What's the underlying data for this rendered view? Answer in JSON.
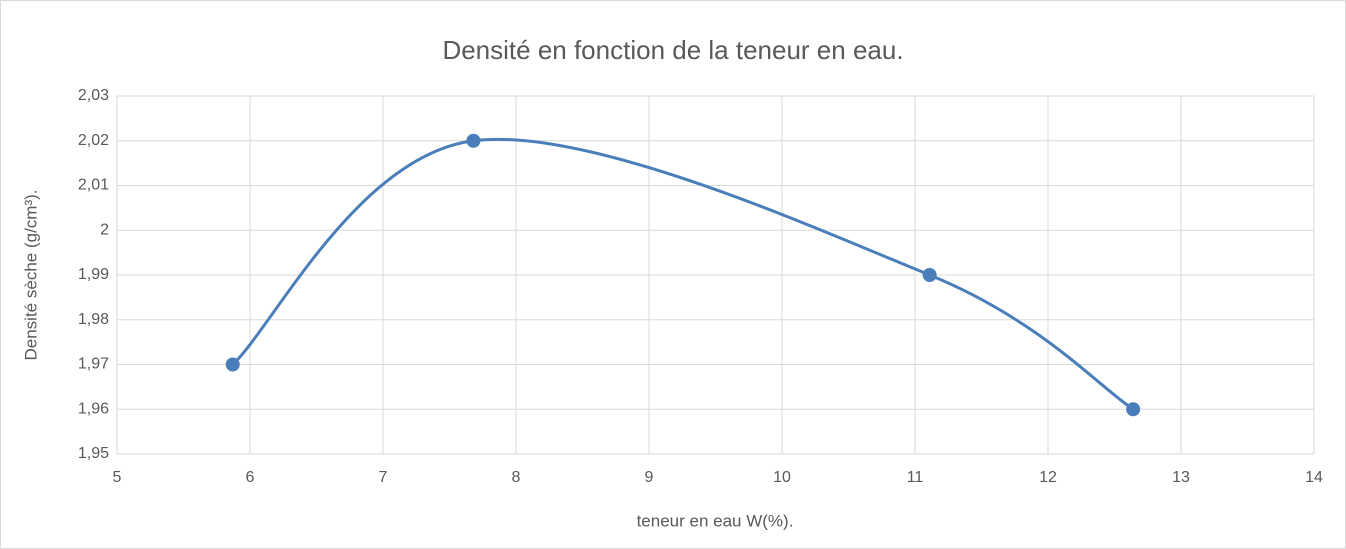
{
  "chart_data": {
    "type": "scatter",
    "smooth": true,
    "title": "Densité en fonction de la teneur en eau.",
    "xlabel": "teneur en eau W(%).",
    "ylabel": "Densité sèche (g/cm³).",
    "x": [
      5.87,
      7.68,
      11.11,
      12.64
    ],
    "values": [
      1.97,
      2.02,
      1.99,
      1.96
    ],
    "color": "#4a7ebb",
    "xlim": [
      5,
      14
    ],
    "xticks": [
      5,
      6,
      7,
      8,
      9,
      10,
      11,
      12,
      13,
      14
    ],
    "ylim": [
      1.95,
      2.03
    ],
    "yticks": [
      {
        "value": 1.95,
        "label": "1,95"
      },
      {
        "value": 1.96,
        "label": "1,96"
      },
      {
        "value": 1.97,
        "label": "1,97"
      },
      {
        "value": 1.98,
        "label": "1,98"
      },
      {
        "value": 1.99,
        "label": "1,99"
      },
      2,
      {
        "value": 2.01,
        "label": "2,01"
      },
      {
        "value": 2.02,
        "label": "2,02"
      },
      {
        "value": 2.03,
        "label": "2,03"
      }
    ],
    "grid": true
  }
}
